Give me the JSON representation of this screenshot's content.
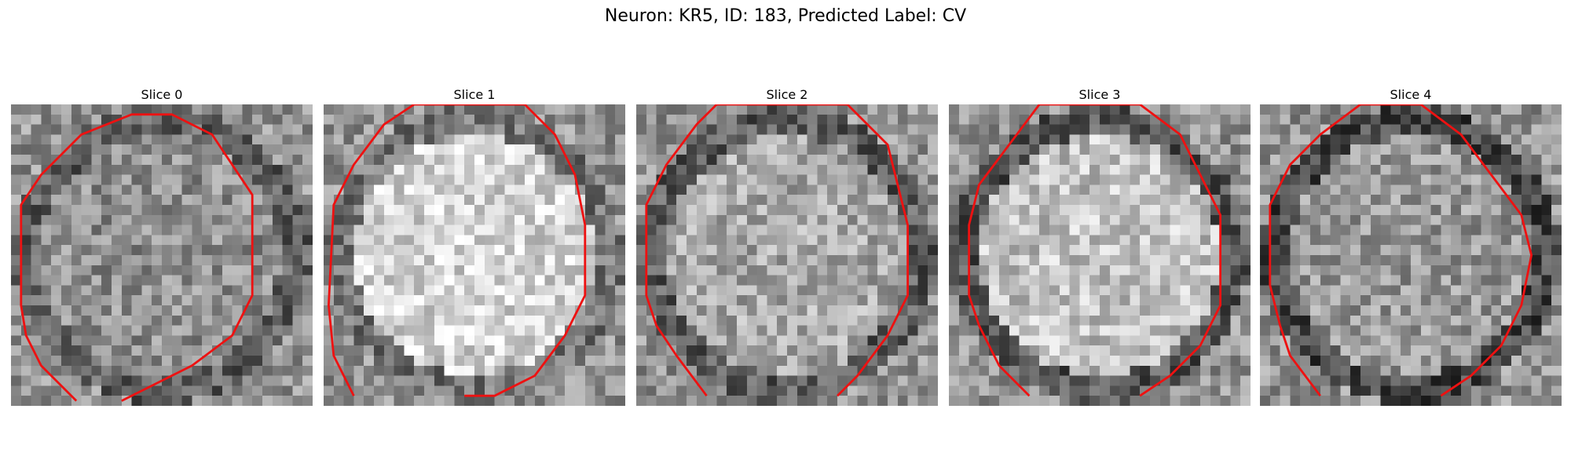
{
  "figure": {
    "title": "Neuron: KR5, ID: 183, Predicted Label: CV"
  },
  "contour_color": "#ee1111",
  "slices": [
    {
      "title": "Slice 0",
      "brightness": 0.56,
      "darkness_ring": 0.18,
      "seed": 11
    },
    {
      "title": "Slice 1",
      "brightness": 0.84,
      "darkness_ring": 0.38,
      "seed": 23
    },
    {
      "title": "Slice 2",
      "brightness": 0.66,
      "darkness_ring": 0.3,
      "seed": 37
    },
    {
      "title": "Slice 3",
      "brightness": 0.76,
      "darkness_ring": 0.42,
      "seed": 51
    },
    {
      "title": "Slice 4",
      "brightness": 0.6,
      "darkness_ring": 0.32,
      "seed": 67
    }
  ]
}
